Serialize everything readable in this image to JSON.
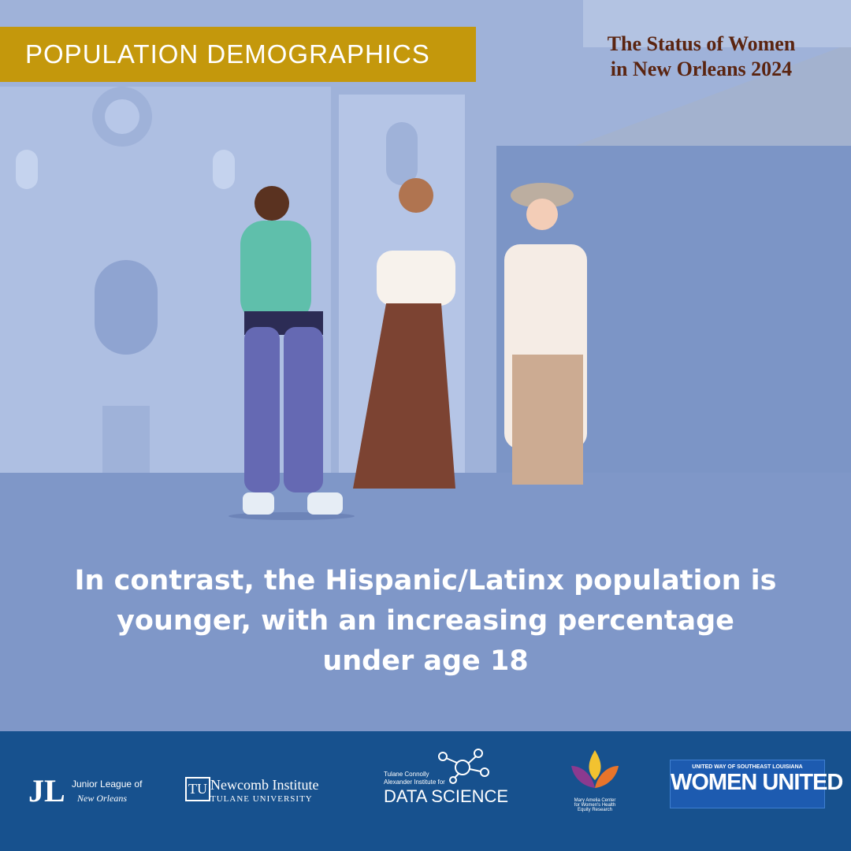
{
  "header": {
    "section_label": "POPULATION DEMOGRAPHICS",
    "report_title": [
      "The Status of Women",
      "in New Orleans 2024"
    ]
  },
  "message": {
    "lines": [
      "In contrast, the Hispanic/Latinx population is",
      "younger, with an increasing percentage",
      "under age 18"
    ]
  },
  "footer": {
    "logos": [
      {
        "mark": "JL",
        "lines": [
          "Junior League of",
          "New Orleans"
        ]
      },
      {
        "mark": "TU",
        "lines": [
          "Newcomb Institute",
          "TULANE UNIVERSITY"
        ]
      },
      {
        "lines": [
          "Tulane Connolly",
          "Alexander Institute for",
          "DATA SCIENCE"
        ]
      },
      {
        "lines": [
          "Mary Amelia Center",
          "for Women's Health",
          "Equity Research"
        ]
      },
      {
        "lines": [
          "UNITED WAY OF SOUTHEAST LOUISIANA",
          "WOMEN UNITED"
        ]
      }
    ]
  }
}
